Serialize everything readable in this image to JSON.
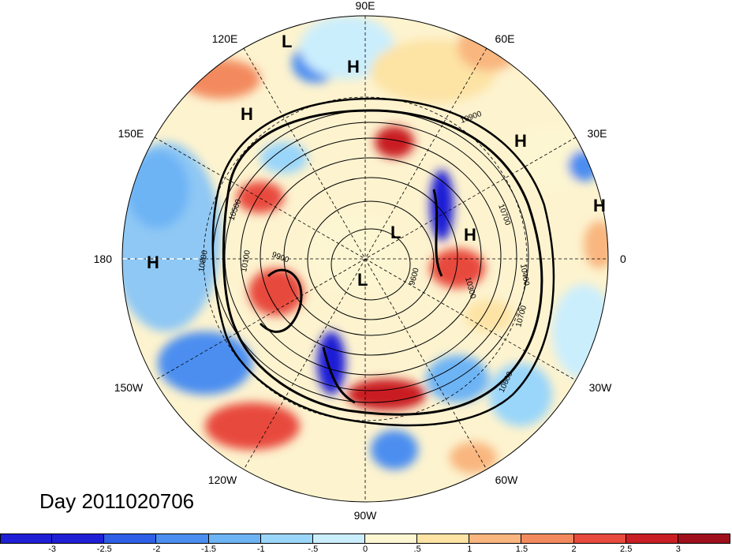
{
  "title": "Day 2011020706",
  "longitude_labels": {
    "top": "90E",
    "bottom": "90W",
    "left": "180",
    "right": "0",
    "upper_left": "120E",
    "upper_right": "60E",
    "mid_upper_left": "150E",
    "mid_upper_right": "30E",
    "mid_lower_left": "150W",
    "mid_lower_right": "30W",
    "lower_left": "120W",
    "lower_right": "60W"
  },
  "pressure_centers": [
    "L",
    "H",
    "H",
    "H",
    "H",
    "H",
    "L",
    "H",
    "L"
  ],
  "contour_labels": [
    "10900",
    "10700",
    "10500",
    "10800",
    "10100",
    "9900",
    "9600",
    "10300",
    "10700",
    "10600",
    "10400"
  ],
  "colorbar": {
    "colors": [
      "#1f1fd6",
      "#2e5fe6",
      "#4b8ef0",
      "#6db4f5",
      "#9ad6fa",
      "#cbeefd",
      "#fdf6d2",
      "#fde3a4",
      "#f9b67f",
      "#f38a5e",
      "#e84a3c",
      "#c91f24",
      "#a0101c"
    ],
    "labels": [
      "-3",
      "-2.5",
      "-2",
      "-1.5",
      "-1",
      "-.5",
      "0",
      ".5",
      "1",
      "1.5",
      "2",
      "2.5",
      "3"
    ]
  }
}
